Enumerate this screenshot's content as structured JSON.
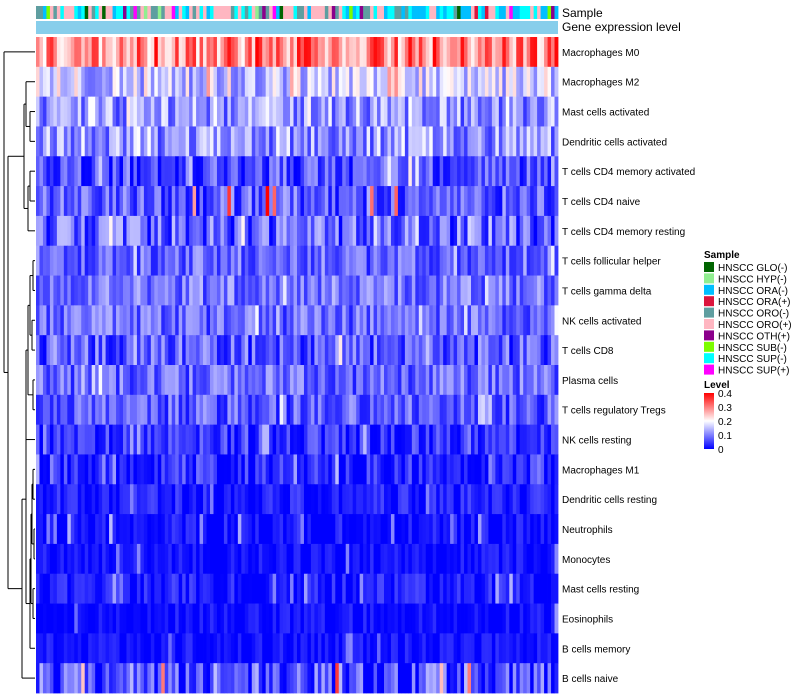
{
  "chart_data": {
    "type": "heatmap",
    "title": "",
    "annotation_labels": {
      "sample": "Sample",
      "level": "Gene expression level"
    },
    "rows": [
      {
        "name": "Macrophages M0",
        "mean": 0.3,
        "spread": 0.1,
        "max": 0.4
      },
      {
        "name": "Macrophages M2",
        "mean": 0.16,
        "spread": 0.08,
        "max": 0.3
      },
      {
        "name": "Mast cells activated",
        "mean": 0.12,
        "spread": 0.08,
        "max": 0.22
      },
      {
        "name": "Dendritic cells activated",
        "mean": 0.12,
        "spread": 0.08,
        "max": 0.25
      },
      {
        "name": "T cells CD4 memory activated",
        "mean": 0.06,
        "spread": 0.07,
        "max": 0.22
      },
      {
        "name": "T cells CD4 naive",
        "mean": 0.07,
        "spread": 0.07,
        "max": 0.4
      },
      {
        "name": "T cells CD4 memory resting",
        "mean": 0.07,
        "spread": 0.08,
        "max": 0.22
      },
      {
        "name": "T cells follicular helper",
        "mean": 0.08,
        "spread": 0.06,
        "max": 0.2
      },
      {
        "name": "T cells gamma delta",
        "mean": 0.09,
        "spread": 0.06,
        "max": 0.2
      },
      {
        "name": "NK cells activated",
        "mean": 0.08,
        "spread": 0.06,
        "max": 0.2
      },
      {
        "name": "T cells CD8",
        "mean": 0.07,
        "spread": 0.07,
        "max": 0.22
      },
      {
        "name": "Plasma cells",
        "mean": 0.08,
        "spread": 0.06,
        "max": 0.2
      },
      {
        "name": "T cells regulatory  Tregs",
        "mean": 0.07,
        "spread": 0.06,
        "max": 0.2
      },
      {
        "name": "NK cells resting",
        "mean": 0.04,
        "spread": 0.05,
        "max": 0.15
      },
      {
        "name": "Macrophages M1",
        "mean": 0.03,
        "spread": 0.05,
        "max": 0.15
      },
      {
        "name": "Dendritic cells resting",
        "mean": 0.02,
        "spread": 0.04,
        "max": 0.15
      },
      {
        "name": "Neutrophils",
        "mean": 0.01,
        "spread": 0.04,
        "max": 0.15
      },
      {
        "name": "Monocytes",
        "mean": 0.01,
        "spread": 0.03,
        "max": 0.12
      },
      {
        "name": "Mast cells resting",
        "mean": 0.02,
        "spread": 0.04,
        "max": 0.15
      },
      {
        "name": "Eosinophils",
        "mean": 0.01,
        "spread": 0.03,
        "max": 0.12
      },
      {
        "name": "B cells memory",
        "mean": 0.01,
        "spread": 0.03,
        "max": 0.12
      },
      {
        "name": "B cells naive",
        "mean": 0.06,
        "spread": 0.09,
        "max": 0.4
      }
    ],
    "n_samples": 150,
    "value_range": [
      0,
      0.4
    ],
    "color_scale": {
      "low": "#0000ff",
      "mid": "#ffffff",
      "high": "#ff0000",
      "mid_value": 0.2
    },
    "sample_groups": [
      {
        "name": "HNSCC GLO(-)",
        "color": "#006400"
      },
      {
        "name": "HNSCC HYP(-)",
        "color": "#90ee90"
      },
      {
        "name": "HNSCC ORA(-)",
        "color": "#00bfff"
      },
      {
        "name": "HNSCC ORA(+)",
        "color": "#dc143c"
      },
      {
        "name": "HNSCC ORO(-)",
        "color": "#5f9ea0"
      },
      {
        "name": "HNSCC ORO(+)",
        "color": "#ffb6c1"
      },
      {
        "name": "HNSCC OTH(+)",
        "color": "#8b008b"
      },
      {
        "name": "HNSCC SUB(-)",
        "color": "#7cfc00"
      },
      {
        "name": "HNSCC SUP(-)",
        "color": "#00ffff"
      },
      {
        "name": "HNSCC SUP(+)",
        "color": "#ff00ff"
      }
    ],
    "legend": {
      "sample_title": "Sample",
      "level_title": "Level",
      "level_ticks": [
        "0.4",
        "0.3",
        "0.2",
        "0.1",
        "0"
      ],
      "placement": "right"
    },
    "dendrogram": "rows",
    "level_bar_color": "#87ceeb"
  }
}
